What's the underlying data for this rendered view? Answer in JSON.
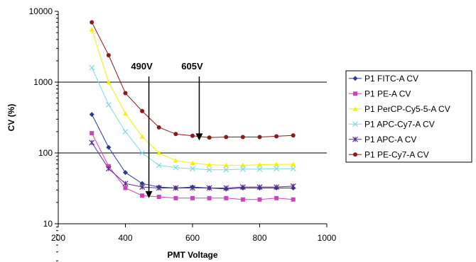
{
  "chart_data": {
    "type": "line",
    "title": "",
    "xlabel": "PMT Voltage",
    "ylabel": "CV (%)",
    "x_scale": "linear",
    "y_scale": "log",
    "xlim": [
      200,
      1000
    ],
    "ylim": [
      10,
      10000
    ],
    "x_ticks": [
      "200",
      "400",
      "600",
      "800",
      "1000"
    ],
    "y_ticks": [
      "10",
      "100",
      "1000",
      "10000"
    ],
    "gridlines": "horizontal",
    "legend_position": "right",
    "x": [
      300,
      350,
      400,
      450,
      500,
      550,
      600,
      650,
      700,
      750,
      800,
      850,
      900
    ],
    "series": [
      {
        "name": "P1 FITC-A CV",
        "color": "#2a3a8f",
        "marker": "diamond",
        "values": [
          350,
          120,
          53,
          37,
          33,
          32,
          33,
          32,
          31,
          32,
          32,
          32,
          32
        ]
      },
      {
        "name": "P1 PE-A CV",
        "color": "#cc44bb",
        "marker": "square",
        "values": [
          190,
          65,
          32,
          25,
          24,
          23,
          23,
          23,
          23,
          22,
          22,
          23,
          22
        ]
      },
      {
        "name": "P1 PerCP-Cy5-5-A CV",
        "color": "#f2f200",
        "marker": "triangle",
        "values": [
          5500,
          1000,
          360,
          170,
          100,
          78,
          72,
          68,
          67,
          67,
          68,
          69,
          69
        ]
      },
      {
        "name": "P1 APC-Cy7-A CV",
        "color": "#7fd8ea",
        "marker": "x",
        "values": [
          1600,
          480,
          200,
          100,
          67,
          62,
          60,
          58,
          58,
          59,
          59,
          60,
          60
        ]
      },
      {
        "name": "P1 APC-A CV",
        "color": "#5a2a8f",
        "marker": "star",
        "values": [
          140,
          60,
          37,
          33,
          32,
          32,
          32,
          32,
          32,
          33,
          33,
          33,
          34
        ]
      },
      {
        "name": "P1 PE-Cy7-A CV",
        "color": "#8b1a1a",
        "marker": "circle",
        "values": [
          7000,
          2400,
          700,
          390,
          230,
          185,
          175,
          165,
          168,
          168,
          168,
          172,
          177
        ]
      }
    ],
    "annotations": [
      {
        "text": "490V",
        "x": 470,
        "arrow_from_y": 1000,
        "arrow_to_y": 23
      },
      {
        "text": "605V",
        "x": 620,
        "arrow_from_y": 1000,
        "arrow_to_y": 150
      }
    ]
  }
}
